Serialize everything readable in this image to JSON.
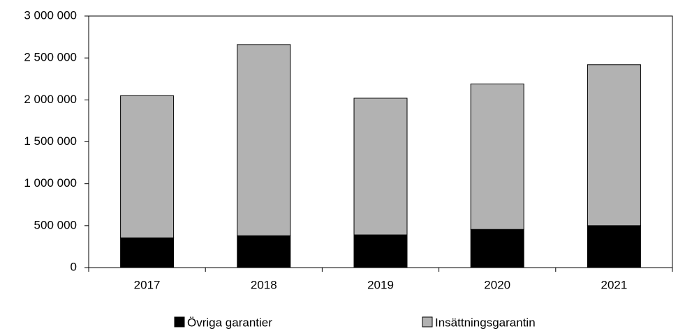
{
  "chart_data": {
    "type": "stacked-bar",
    "categories": [
      "2017",
      "2018",
      "2019",
      "2020",
      "2021"
    ],
    "series": [
      {
        "name": "Övriga garantier",
        "color": "#000000",
        "values": [
          355000,
          380000,
          390000,
          455000,
          500000
        ]
      },
      {
        "name": "Insättningsgarantin",
        "color": "#b2b2b2",
        "values": [
          1695000,
          2280000,
          1630000,
          1735000,
          1920000
        ]
      }
    ],
    "ylim": [
      0,
      3000000
    ],
    "yticks": [
      0,
      {
        "value": 500000,
        "label": "500 000"
      },
      {
        "value": 1000000,
        "label": "1 000 000"
      },
      {
        "value": 1500000,
        "label": "1 500 000"
      },
      {
        "value": 2000000,
        "label": "2 000 000"
      },
      {
        "value": 2500000,
        "label": "2 500 000"
      },
      {
        "value": 3000000,
        "label": "3 000 000"
      }
    ]
  }
}
